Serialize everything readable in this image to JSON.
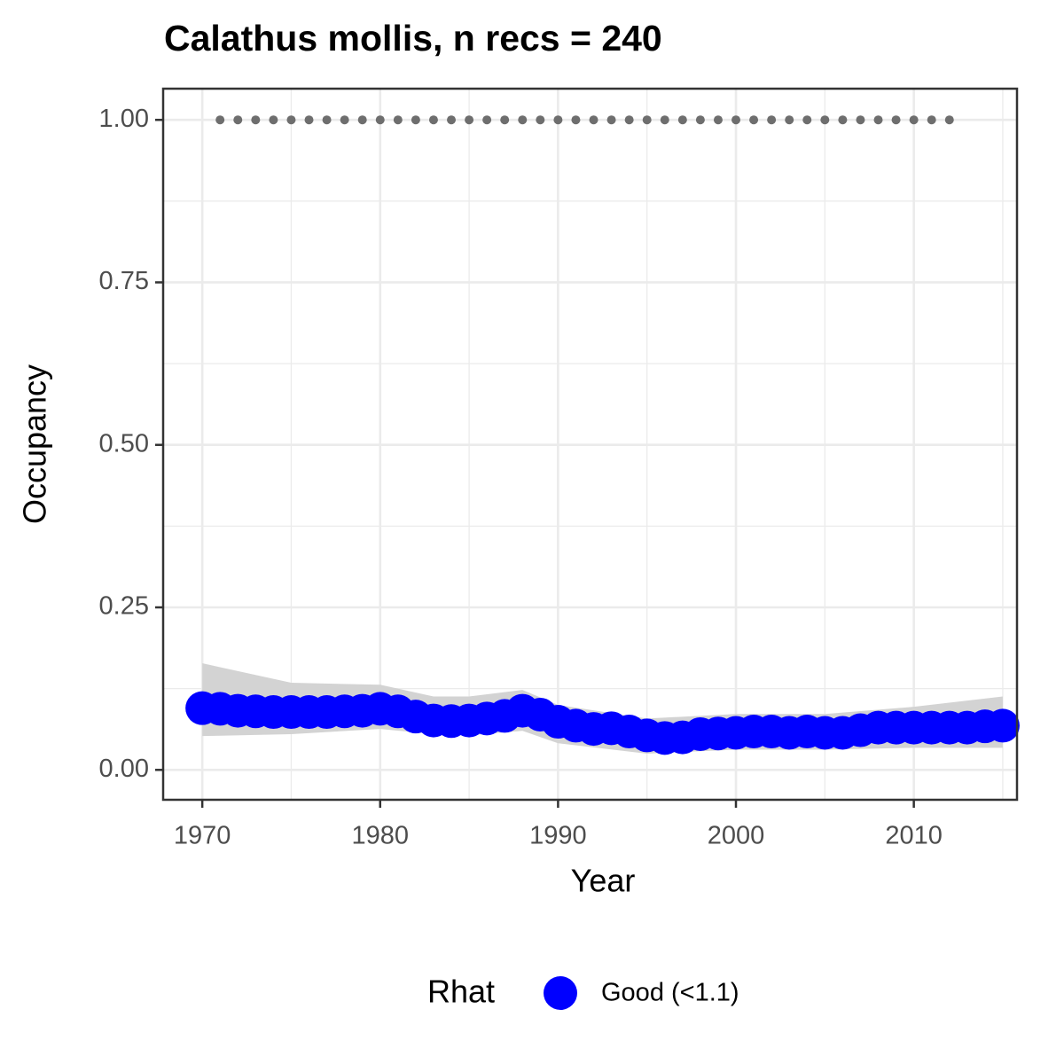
{
  "chart_data": {
    "type": "line",
    "title": "Calathus mollis, n recs = 240",
    "x_label": "Year",
    "y_label": "Occupancy",
    "legend_title": "Rhat",
    "xlim": [
      1967.8,
      2015.8
    ],
    "ylim": [
      -0.046,
      1.048
    ],
    "xticks": [
      1970,
      1980,
      1990,
      2000,
      2010
    ],
    "yticks": [
      {
        "value": 0,
        "label": "0.00"
      },
      {
        "value": 0.25,
        "label": "0.25"
      },
      {
        "value": 0.5,
        "label": "0.50"
      },
      {
        "value": 0.75,
        "label": "0.75"
      },
      {
        "value": 1,
        "label": "1.00"
      }
    ],
    "grid": true,
    "series": [
      {
        "name": "Good (<1.1)",
        "color": "#0000ff",
        "x": [
          1970,
          1971,
          1972,
          1973,
          1974,
          1975,
          1976,
          1977,
          1978,
          1979,
          1980,
          1981,
          1982,
          1983,
          1984,
          1985,
          1986,
          1987,
          1988,
          1989,
          1990,
          1991,
          1992,
          1993,
          1994,
          1995,
          1996,
          1997,
          1998,
          1999,
          2000,
          2001,
          2002,
          2003,
          2004,
          2005,
          2006,
          2007,
          2008,
          2009,
          2010,
          2011,
          2012,
          2013,
          2014,
          2015
        ],
        "values": [
          0.095,
          0.094,
          0.091,
          0.09,
          0.089,
          0.089,
          0.089,
          0.089,
          0.09,
          0.091,
          0.094,
          0.09,
          0.082,
          0.076,
          0.075,
          0.076,
          0.079,
          0.083,
          0.091,
          0.085,
          0.074,
          0.068,
          0.063,
          0.064,
          0.059,
          0.053,
          0.049,
          0.05,
          0.055,
          0.056,
          0.057,
          0.059,
          0.059,
          0.057,
          0.059,
          0.057,
          0.057,
          0.061,
          0.065,
          0.065,
          0.065,
          0.065,
          0.065,
          0.065,
          0.067,
          0.068
        ]
      }
    ],
    "interval": {
      "color": "#d3d3d3",
      "x": [
        1970,
        1975,
        1980,
        1983,
        1985,
        1988,
        1990,
        1995,
        2000,
        2005,
        2010,
        2015
      ],
      "lower": [
        0.052,
        0.055,
        0.063,
        0.055,
        0.053,
        0.06,
        0.041,
        0.025,
        0.031,
        0.031,
        0.034,
        0.034
      ],
      "upper": [
        0.164,
        0.134,
        0.131,
        0.113,
        0.113,
        0.123,
        0.1,
        0.079,
        0.086,
        0.086,
        0.097,
        0.113
      ]
    },
    "records": {
      "color": "#6e6e6e",
      "x": [
        1971,
        1972,
        1973,
        1974,
        1975,
        1976,
        1977,
        1978,
        1979,
        1980,
        1981,
        1982,
        1983,
        1984,
        1985,
        1986,
        1987,
        1988,
        1989,
        1990,
        1991,
        1992,
        1993,
        1994,
        1995,
        1996,
        1997,
        1998,
        1999,
        2000,
        2001,
        2002,
        2003,
        2004,
        2005,
        2006,
        2007,
        2008,
        2009,
        2010,
        2011,
        2012
      ],
      "values": [
        1,
        1,
        1,
        1,
        1,
        1,
        1,
        1,
        1,
        1,
        1,
        1,
        1,
        1,
        1,
        1,
        1,
        1,
        1,
        1,
        1,
        1,
        1,
        1,
        1,
        1,
        1,
        1,
        1,
        1,
        1,
        1,
        1,
        1,
        1,
        1,
        1,
        1,
        1,
        1,
        1,
        1
      ]
    }
  }
}
